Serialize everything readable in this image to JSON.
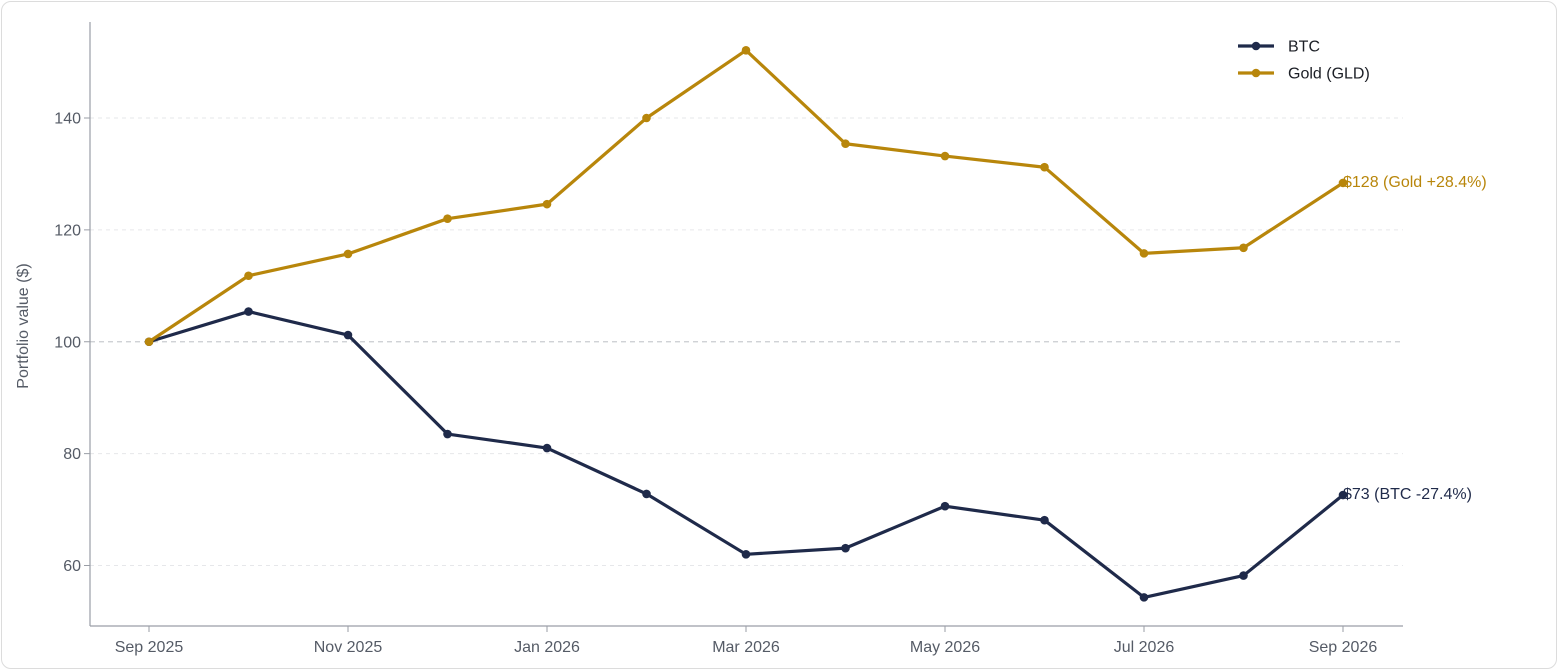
{
  "chart_data": {
    "type": "line",
    "ylabel": "Portfolio value ($)",
    "xlabel": "",
    "ylim": [
      50,
      155
    ],
    "yticks": [
      60,
      80,
      100,
      120,
      140
    ],
    "x": [
      "2025-09",
      "2025-10",
      "2025-11",
      "2025-12",
      "2026-01",
      "2026-02",
      "2026-03",
      "2026-04",
      "2026-05",
      "2026-06",
      "2026-07",
      "2026-08",
      "2026-09"
    ],
    "xticks": [
      {
        "index": 0,
        "label": "Sep 2025"
      },
      {
        "index": 2,
        "label": "Nov 2025"
      },
      {
        "index": 4,
        "label": "Jan 2026"
      },
      {
        "index": 6,
        "label": "Mar 2026"
      },
      {
        "index": 8,
        "label": "May 2026"
      },
      {
        "index": 10,
        "label": "Jul 2026"
      },
      {
        "index": 12,
        "label": "Sep 2026"
      }
    ],
    "reference_line": 100,
    "grid": "horizontal dashed",
    "legend_position": "top-right",
    "series": [
      {
        "name": "BTC",
        "color": "#1f2a4a",
        "values": [
          100,
          105.4,
          101.2,
          83.5,
          81,
          72.8,
          62,
          63.1,
          70.6,
          68.1,
          54.3,
          58.2,
          72.6
        ],
        "end_label": "$73 (BTC -27.4%)"
      },
      {
        "name": "Gold (GLD)",
        "color": "#b8860b",
        "values": [
          100,
          111.8,
          115.7,
          122,
          124.6,
          140,
          152.1,
          135.4,
          133.2,
          131.2,
          115.8,
          116.8,
          128.4
        ],
        "end_label": "$128 (Gold +28.4%)"
      }
    ]
  }
}
